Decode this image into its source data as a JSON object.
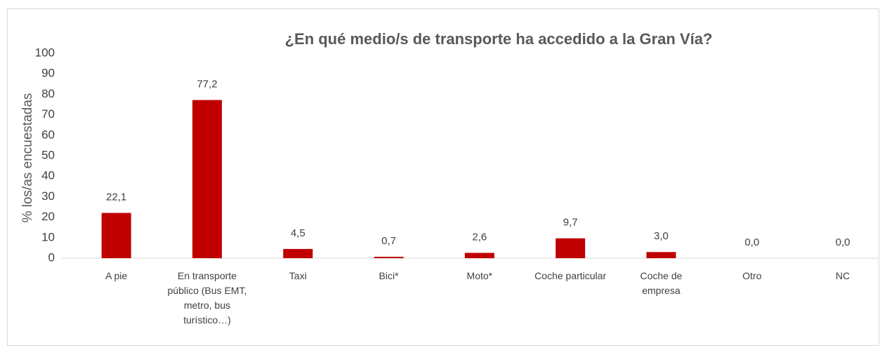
{
  "chart_data": {
    "type": "bar",
    "title": "¿En qué medio/s de transporte ha accedido a la Gran Vía?",
    "y_label": "% los/as encuestadas",
    "categories": [
      "A pie",
      "En transporte público (Bus EMT, metro, bus turístico…)",
      "Taxi",
      "Bici*",
      "Moto*",
      "Coche particular",
      "Coche de empresa",
      "Otro",
      "NC"
    ],
    "values": [
      22.1,
      77.2,
      4.5,
      0.7,
      2.6,
      9.7,
      3.0,
      0.0,
      0.0
    ],
    "value_labels": [
      "22,1",
      "77,2",
      "4,5",
      "0,7",
      "2,6",
      "9,7",
      "3,0",
      "0,0",
      "0,0"
    ],
    "color": "#c00000",
    "ylim": [
      0,
      100
    ],
    "yticks": [
      0,
      10,
      20,
      30,
      40,
      50,
      60,
      70,
      80,
      90,
      100
    ],
    "grid": false
  }
}
